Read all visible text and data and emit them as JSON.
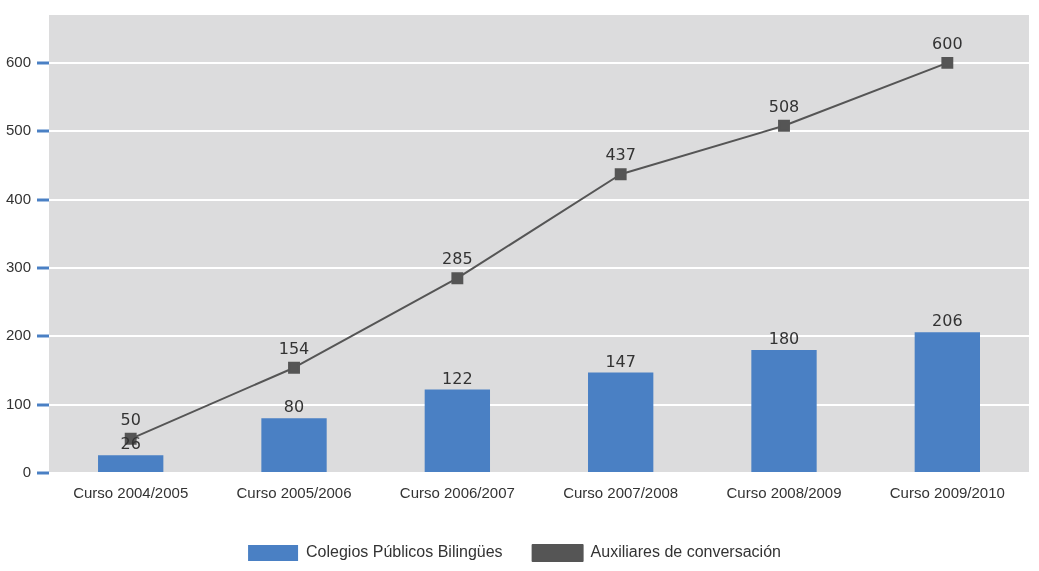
{
  "chart_data": {
    "type": "bar",
    "categories": [
      "Curso 2004/2005",
      "Curso 2005/2006",
      "Curso 2006/2007",
      "Curso 2007/2008",
      "Curso 2008/2009",
      "Curso 2009/2010"
    ],
    "series": [
      {
        "name": "Colegios Públicos Bilingües",
        "color": "#4a80c4",
        "values": [
          26,
          80,
          122,
          147,
          180,
          206
        ]
      },
      {
        "name": "Auxiliares de conversación",
        "type": "line",
        "color": "#555555",
        "values": [
          50,
          154,
          285,
          437,
          508,
          600
        ]
      }
    ],
    "ylim": [
      0,
      670
    ],
    "yticks": [
      0,
      100,
      200,
      300,
      400,
      500,
      600
    ],
    "grid": "y",
    "legend": "bottom",
    "data_labels": true,
    "marker": "square",
    "line_style": "solid"
  }
}
